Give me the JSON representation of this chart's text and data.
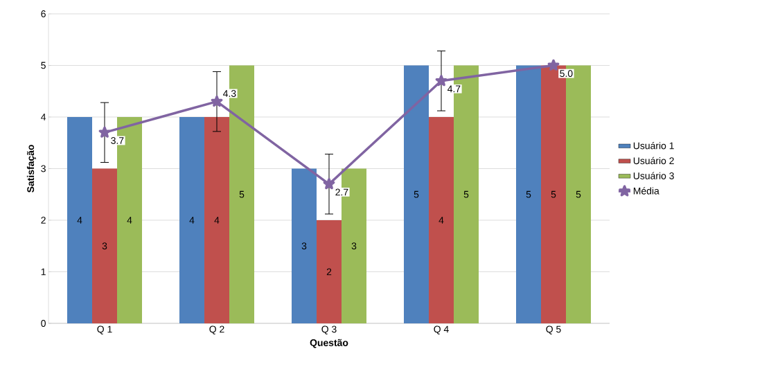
{
  "chart_data": {
    "type": "bar",
    "xlabel": "Questão",
    "ylabel": "Satisfação",
    "categories": [
      "Q 1",
      "Q 2",
      "Q 3",
      "Q 4",
      "Q 5"
    ],
    "series": [
      {
        "name": "Usuário 1",
        "color": "#4f81bd",
        "values": [
          4,
          4,
          3,
          5,
          5
        ]
      },
      {
        "name": "Usuário 2",
        "color": "#c0504d",
        "values": [
          3,
          4,
          2,
          4,
          5
        ]
      },
      {
        "name": "Usuário 3",
        "color": "#9bbb59",
        "values": [
          4,
          5,
          3,
          5,
          5
        ]
      },
      {
        "name": "Média",
        "type": "line",
        "color": "#8064a2",
        "marker": "star",
        "values": [
          3.7,
          4.3,
          2.7,
          4.7,
          5.0
        ],
        "value_labels": [
          "3.7",
          "4.3",
          "2.7",
          "4.7",
          "5.0"
        ],
        "errors": [
          0.58,
          0.58,
          0.58,
          0.58,
          null
        ]
      }
    ],
    "ylim": [
      0,
      6
    ],
    "yticks": [
      0,
      1,
      2,
      3,
      4,
      5,
      6
    ],
    "grid": "y",
    "legend": "right",
    "data_labels": true
  }
}
